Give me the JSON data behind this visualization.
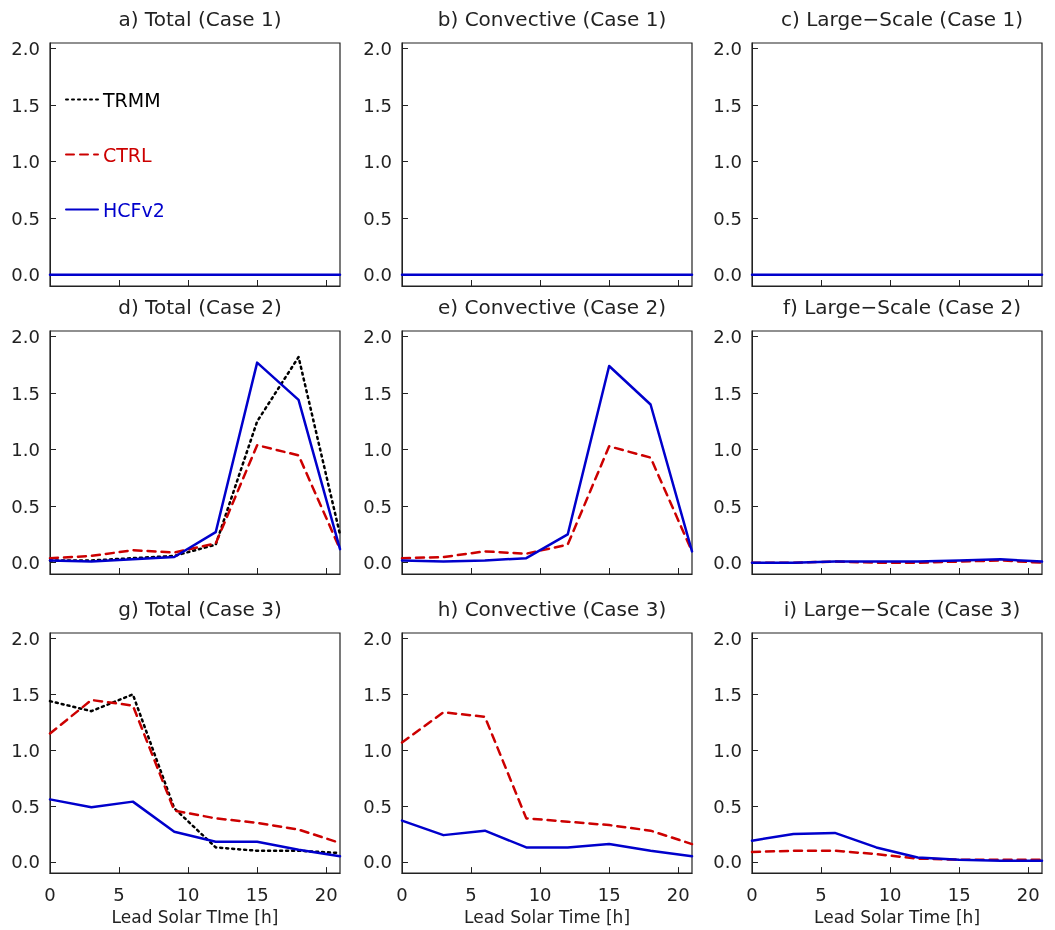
{
  "chart_data": [
    {
      "type": "line",
      "title": "a) Total (Case 1)",
      "x": [
        0,
        3,
        6,
        9,
        12,
        15,
        18,
        21
      ],
      "xlim": [
        0,
        21
      ],
      "xticks": [
        0,
        5,
        10,
        15,
        20
      ],
      "ylim": [
        -0.1,
        2.05
      ],
      "yticks": [
        {
          "value": 0,
          "label": "0.0"
        },
        {
          "value": 0.5,
          "label": "0.5"
        },
        {
          "value": 1,
          "label": "1.0"
        },
        {
          "value": 1.5,
          "label": "1.5"
        },
        {
          "value": 2,
          "label": "2.0"
        }
      ],
      "tick_labels": "y",
      "grid": false,
      "legend": "top left",
      "series": [
        {
          "name": "TRMM",
          "color": "#000000",
          "line_style": "dotted",
          "values": [
            null,
            null,
            null,
            null,
            null,
            null,
            null,
            null
          ]
        },
        {
          "name": "CTRL",
          "color": "#cc0000",
          "line_style": "dashed",
          "values": [
            null,
            null,
            null,
            null,
            null,
            null,
            null,
            null
          ]
        },
        {
          "name": "HCFv2",
          "color": "#0000cc",
          "line_style": "solid",
          "values": [
            0,
            0,
            0,
            0,
            0,
            0,
            0,
            0
          ]
        }
      ]
    },
    {
      "type": "line",
      "title": "b) Convective (Case 1)",
      "x": [
        0,
        3,
        6,
        9,
        12,
        15,
        18,
        21
      ],
      "xlim": [
        0,
        21
      ],
      "xticks": [
        0,
        5,
        10,
        15,
        20
      ],
      "ylim": [
        -0.1,
        2.05
      ],
      "yticks": [
        {
          "value": 0,
          "label": "0.0"
        },
        {
          "value": 0.5,
          "label": "0.5"
        },
        {
          "value": 1,
          "label": "1.0"
        },
        {
          "value": 1.5,
          "label": "1.5"
        },
        {
          "value": 2,
          "label": "2.0"
        }
      ],
      "tick_labels": "y",
      "grid": false,
      "legend": false,
      "series": [
        {
          "color": "#0000cc",
          "line_style": "solid",
          "values": [
            0,
            0,
            0,
            0,
            0,
            0,
            0,
            0
          ]
        }
      ]
    },
    {
      "type": "line",
      "title": "c) Large−Scale (Case 1)",
      "x": [
        0,
        3,
        6,
        9,
        12,
        15,
        18,
        21
      ],
      "xlim": [
        0,
        21
      ],
      "xticks": [
        0,
        5,
        10,
        15,
        20
      ],
      "ylim": [
        -0.1,
        2.05
      ],
      "yticks": [
        {
          "value": 0,
          "label": "0.0"
        },
        {
          "value": 0.5,
          "label": "0.5"
        },
        {
          "value": 1,
          "label": "1.0"
        },
        {
          "value": 1.5,
          "label": "1.5"
        },
        {
          "value": 2,
          "label": "2.0"
        }
      ],
      "tick_labels": "y",
      "grid": false,
      "legend": false,
      "series": [
        {
          "color": "#0000cc",
          "line_style": "solid",
          "values": [
            0,
            0,
            0,
            0,
            0,
            0,
            0,
            0
          ]
        }
      ]
    },
    {
      "type": "line",
      "title": "d) Total (Case 2)",
      "x": [
        0,
        3,
        6,
        9,
        12,
        15,
        18,
        21
      ],
      "xlim": [
        0,
        21
      ],
      "xticks": [
        0,
        5,
        10,
        15,
        20
      ],
      "ylim": [
        -0.1,
        2.05
      ],
      "yticks": [
        {
          "value": 0,
          "label": "0.0"
        },
        {
          "value": 0.5,
          "label": "0.5"
        },
        {
          "value": 1,
          "label": "1.0"
        },
        {
          "value": 1.5,
          "label": "1.5"
        },
        {
          "value": 2,
          "label": "2.0"
        }
      ],
      "tick_labels": "y",
      "grid": false,
      "legend": false,
      "series": [
        {
          "color": "#000000",
          "line_style": "dotted",
          "values": [
            0.02,
            0.02,
            0.04,
            0.06,
            0.16,
            1.25,
            1.82,
            0.25
          ]
        },
        {
          "color": "#cc0000",
          "line_style": "dashed",
          "values": [
            0.04,
            0.06,
            0.11,
            0.09,
            0.17,
            1.04,
            0.95,
            0.12
          ]
        },
        {
          "color": "#0000cc",
          "line_style": "solid",
          "values": [
            0.02,
            0.01,
            0.03,
            0.05,
            0.27,
            1.77,
            1.44,
            0.12
          ]
        }
      ]
    },
    {
      "type": "line",
      "title": "e) Convective (Case 2)",
      "x": [
        0,
        3,
        6,
        9,
        12,
        15,
        18,
        21
      ],
      "xlim": [
        0,
        21
      ],
      "xticks": [
        0,
        5,
        10,
        15,
        20
      ],
      "ylim": [
        -0.1,
        2.05
      ],
      "yticks": [
        {
          "value": 0,
          "label": "0.0"
        },
        {
          "value": 0.5,
          "label": "0.5"
        },
        {
          "value": 1,
          "label": "1.0"
        },
        {
          "value": 1.5,
          "label": "1.5"
        },
        {
          "value": 2,
          "label": "2.0"
        }
      ],
      "tick_labels": "y",
      "grid": false,
      "legend": false,
      "series": [
        {
          "color": "#cc0000",
          "line_style": "dashed",
          "values": [
            0.04,
            0.05,
            0.1,
            0.08,
            0.16,
            1.03,
            0.93,
            0.1
          ]
        },
        {
          "color": "#0000cc",
          "line_style": "solid",
          "values": [
            0.02,
            0.01,
            0.02,
            0.04,
            0.25,
            1.74,
            1.4,
            0.1
          ]
        }
      ]
    },
    {
      "type": "line",
      "title": "f) Large−Scale (Case 2)",
      "x": [
        0,
        3,
        6,
        9,
        12,
        15,
        18,
        21
      ],
      "xlim": [
        0,
        21
      ],
      "xticks": [
        0,
        5,
        10,
        15,
        20
      ],
      "ylim": [
        -0.1,
        2.05
      ],
      "yticks": [
        {
          "value": 0,
          "label": "0.0"
        },
        {
          "value": 0.5,
          "label": "0.5"
        },
        {
          "value": 1,
          "label": "1.0"
        },
        {
          "value": 1.5,
          "label": "1.5"
        },
        {
          "value": 2,
          "label": "2.0"
        }
      ],
      "tick_labels": "y",
      "grid": false,
      "legend": false,
      "series": [
        {
          "color": "#cc0000",
          "line_style": "dashed",
          "values": [
            0,
            0,
            0.01,
            0,
            0,
            0.01,
            0.02,
            0
          ]
        },
        {
          "color": "#0000cc",
          "line_style": "solid",
          "values": [
            0,
            0,
            0.01,
            0.01,
            0.01,
            0.02,
            0.03,
            0.01
          ]
        }
      ]
    },
    {
      "type": "line",
      "title": "g) Total (Case 3)",
      "xlabel": "Lead Solar TIme [h]",
      "x": [
        0,
        3,
        6,
        9,
        12,
        15,
        18,
        21
      ],
      "xlim": [
        0,
        21
      ],
      "xticks": [
        0,
        5,
        10,
        15,
        20
      ],
      "ylim": [
        -0.1,
        2.05
      ],
      "yticks": [
        {
          "value": 0,
          "label": "0.0"
        },
        {
          "value": 0.5,
          "label": "0.5"
        },
        {
          "value": 1,
          "label": "1.0"
        },
        {
          "value": 1.5,
          "label": "1.5"
        },
        {
          "value": 2,
          "label": "2.0"
        }
      ],
      "grid": false,
      "legend": false,
      "series": [
        {
          "color": "#000000",
          "line_style": "dotted",
          "values": [
            1.44,
            1.35,
            1.5,
            0.48,
            0.13,
            0.1,
            0.1,
            0.08
          ]
        },
        {
          "color": "#cc0000",
          "line_style": "dashed",
          "values": [
            1.15,
            1.45,
            1.4,
            0.46,
            0.39,
            0.35,
            0.29,
            0.17
          ]
        },
        {
          "color": "#0000cc",
          "line_style": "solid",
          "values": [
            0.56,
            0.49,
            0.54,
            0.27,
            0.18,
            0.18,
            0.11,
            0.05
          ]
        }
      ]
    },
    {
      "type": "line",
      "title": "h) Convective (Case 3)",
      "xlabel": "Lead Solar Time [h]",
      "x": [
        0,
        3,
        6,
        9,
        12,
        15,
        18,
        21
      ],
      "xlim": [
        0,
        21
      ],
      "xticks": [
        0,
        5,
        10,
        15,
        20
      ],
      "ylim": [
        -0.1,
        2.05
      ],
      "yticks": [
        {
          "value": 0,
          "label": "0.0"
        },
        {
          "value": 0.5,
          "label": "0.5"
        },
        {
          "value": 1,
          "label": "1.0"
        },
        {
          "value": 1.5,
          "label": "1.5"
        },
        {
          "value": 2,
          "label": "2.0"
        }
      ],
      "grid": false,
      "legend": false,
      "series": [
        {
          "color": "#cc0000",
          "line_style": "dashed",
          "values": [
            1.07,
            1.34,
            1.3,
            0.39,
            0.36,
            0.33,
            0.28,
            0.16
          ]
        },
        {
          "color": "#0000cc",
          "line_style": "solid",
          "values": [
            0.37,
            0.24,
            0.28,
            0.13,
            0.13,
            0.16,
            0.1,
            0.05
          ]
        }
      ]
    },
    {
      "type": "line",
      "title": "i) Large−Scale (Case 3)",
      "xlabel": "Lead Solar Time [h]",
      "x": [
        0,
        3,
        6,
        9,
        12,
        15,
        18,
        21
      ],
      "xlim": [
        0,
        21
      ],
      "xticks": [
        0,
        5,
        10,
        15,
        20
      ],
      "ylim": [
        -0.1,
        2.05
      ],
      "yticks": [
        {
          "value": 0,
          "label": "0.0"
        },
        {
          "value": 0.5,
          "label": "0.5"
        },
        {
          "value": 1,
          "label": "1.0"
        },
        {
          "value": 1.5,
          "label": "1.5"
        },
        {
          "value": 2,
          "label": "2.0"
        }
      ],
      "grid": false,
      "legend": false,
      "series": [
        {
          "color": "#cc0000",
          "line_style": "dashed",
          "values": [
            0.09,
            0.1,
            0.1,
            0.07,
            0.03,
            0.02,
            0.02,
            0.02
          ]
        },
        {
          "color": "#0000cc",
          "line_style": "solid",
          "values": [
            0.19,
            0.25,
            0.26,
            0.13,
            0.04,
            0.02,
            0.01,
            0.01
          ]
        }
      ]
    }
  ]
}
